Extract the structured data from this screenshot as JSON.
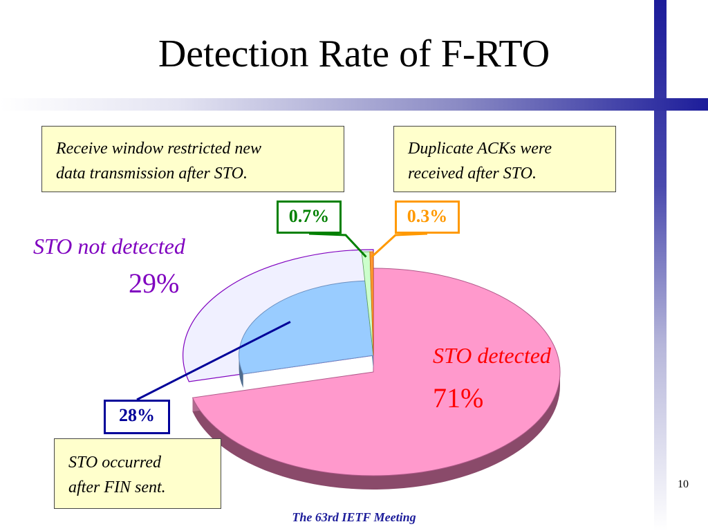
{
  "slide": {
    "title": "Detection Rate of F-RTO",
    "page_number": "10",
    "footer": "The 63rd IETF Meeting"
  },
  "notes": {
    "rwnd": [
      "Receive window restricted new",
      "data transmission after STO."
    ],
    "dupack": [
      "Duplicate ACKs were",
      "received after STO."
    ],
    "fin": [
      "STO occurred",
      "after FIN sent."
    ]
  },
  "chart_data": {
    "type": "pie",
    "title": "",
    "slices": [
      {
        "label": "STO detected",
        "value": 71,
        "display": "71%",
        "color": "#ff99cc"
      },
      {
        "label": "STO not detected",
        "value": 29,
        "display": "29%",
        "color": "#eeeeff"
      },
      {
        "label": "",
        "value": 28,
        "display": "28%",
        "color": "#99ccff",
        "sub_of": "STO not detected",
        "note": "STO occurred after FIN sent."
      },
      {
        "label": "",
        "value": 0.7,
        "display": "0.7%",
        "color": "#ccffcc",
        "sub_of": "STO not detected",
        "note": "Receive window restricted new data transmission after STO."
      },
      {
        "label": "",
        "value": 0.3,
        "display": "0.3%",
        "color": "#ff9933",
        "sub_of": "STO not detected",
        "note": "Duplicate ACKs were received after STO."
      }
    ],
    "label_colors": {
      "detected": "#ff0000",
      "not_detected": "#7f00bf",
      "fin": "#000099",
      "rwnd": "#008000",
      "dupack": "#ff9900"
    }
  }
}
